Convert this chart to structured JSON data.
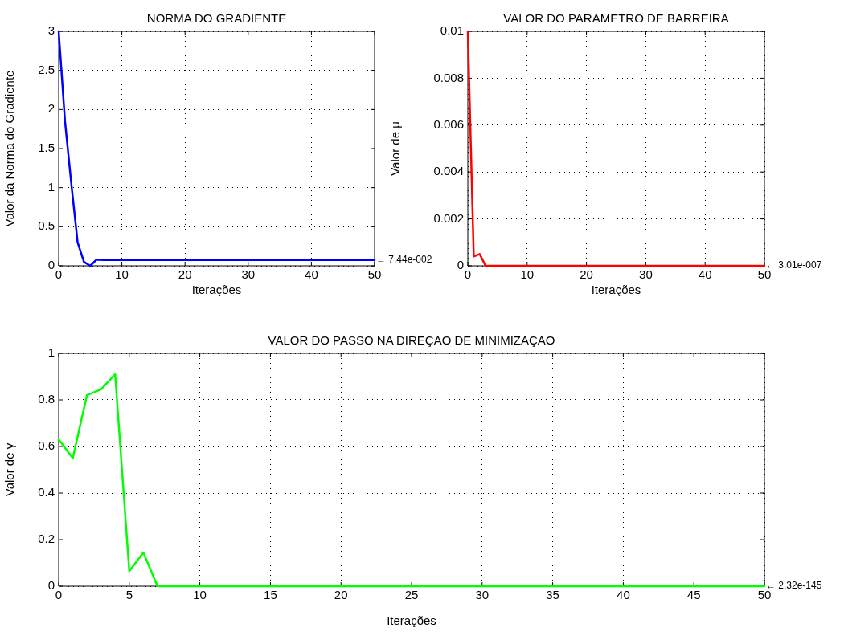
{
  "chart_data": [
    {
      "type": "line",
      "title": "NORMA DO GRADIENTE",
      "xlabel": "Iterações",
      "ylabel": "Valor da Norma do Gradiente",
      "x": [
        0,
        1,
        2,
        3,
        4,
        5,
        6,
        7,
        8,
        9,
        10,
        11,
        12,
        13,
        14,
        15,
        16,
        17,
        18,
        19,
        20,
        21,
        22,
        23,
        24,
        25,
        26,
        27,
        28,
        29,
        30,
        31,
        32,
        33,
        34,
        35,
        36,
        37,
        38,
        39,
        40,
        41,
        42,
        43,
        44,
        45,
        46,
        47,
        48,
        49,
        50
      ],
      "series": [
        {
          "color": "#0000ff",
          "values": [
            3,
            1.85,
            1.05,
            0.3,
            0.05,
            0,
            0.08,
            0.0744,
            0.0744,
            0.0744,
            0.0744,
            0.0744,
            0.0744,
            0.0744,
            0.0744,
            0.0744,
            0.0744,
            0.0744,
            0.0744,
            0.0744,
            0.0744,
            0.0744,
            0.0744,
            0.0744,
            0.0744,
            0.0744,
            0.0744,
            0.0744,
            0.0744,
            0.0744,
            0.0744,
            0.0744,
            0.0744,
            0.0744,
            0.0744,
            0.0744,
            0.0744,
            0.0744,
            0.0744,
            0.0744,
            0.0744,
            0.0744,
            0.0744,
            0.0744,
            0.0744,
            0.0744,
            0.0744,
            0.0744,
            0.0744,
            0.0744,
            0.0744
          ]
        }
      ],
      "xlim": [
        0,
        50
      ],
      "xticks": [
        0,
        10,
        20,
        30,
        40,
        50
      ],
      "ylim": [
        0,
        3
      ],
      "yticks": [
        0,
        0.5,
        1,
        1.5,
        2,
        2.5,
        3
      ],
      "grid": true,
      "annotations": [
        "← 7.44e-002"
      ]
    },
    {
      "type": "line",
      "title": "VALOR DO PARAMETRO DE BARREIRA",
      "xlabel": "Iterações",
      "ylabel": "Valor de μ",
      "x": [
        0,
        1,
        2,
        3,
        4,
        5,
        6,
        7,
        8,
        9,
        10,
        11,
        12,
        13,
        14,
        15,
        16,
        17,
        18,
        19,
        20,
        21,
        22,
        23,
        24,
        25,
        26,
        27,
        28,
        29,
        30,
        31,
        32,
        33,
        34,
        35,
        36,
        37,
        38,
        39,
        40,
        41,
        42,
        43,
        44,
        45,
        46,
        47,
        48,
        49,
        50
      ],
      "series": [
        {
          "color": "#ff0000",
          "values": [
            0.01,
            0.0004,
            0.0005,
            0,
            0,
            0,
            0,
            0,
            0,
            0,
            0,
            0,
            0,
            0,
            0,
            0,
            0,
            0,
            0,
            0,
            0,
            0,
            0,
            0,
            0,
            0,
            0,
            0,
            0,
            0,
            0,
            0,
            0,
            0,
            0,
            0,
            0,
            0,
            0,
            0,
            0,
            0,
            0,
            0,
            0,
            0,
            0,
            0,
            0,
            0,
            0
          ]
        }
      ],
      "xlim": [
        0,
        50
      ],
      "xticks": [
        0,
        10,
        20,
        30,
        40,
        50
      ],
      "ylim": [
        0,
        0.01
      ],
      "yticks": [
        0,
        0.002,
        0.004,
        0.006,
        0.008,
        0.01
      ],
      "grid": true,
      "annotations": [
        "← 3.01e-007"
      ]
    },
    {
      "type": "line",
      "title": "VALOR DO PASSO NA DIREÇAO DE MINIMIZAÇAO",
      "xlabel": "Iterações",
      "ylabel": "Valor de γ",
      "x": [
        0,
        1,
        2,
        3,
        4,
        5,
        6,
        7,
        8,
        9,
        10,
        11,
        12,
        13,
        14,
        15,
        16,
        17,
        18,
        19,
        20,
        21,
        22,
        23,
        24,
        25,
        26,
        27,
        28,
        29,
        30,
        31,
        32,
        33,
        34,
        35,
        36,
        37,
        38,
        39,
        40,
        41,
        42,
        43,
        44,
        45,
        46,
        47,
        48,
        49,
        50
      ],
      "series": [
        {
          "color": "#00ff00",
          "values": [
            0.63,
            0.55,
            0.82,
            0.845,
            0.91,
            0.065,
            0.145,
            0,
            0,
            0,
            0,
            0,
            0,
            0,
            0,
            0,
            0,
            0,
            0,
            0,
            0,
            0,
            0,
            0,
            0,
            0,
            0,
            0,
            0,
            0,
            0,
            0,
            0,
            0,
            0,
            0,
            0,
            0,
            0,
            0,
            0,
            0,
            0,
            0,
            0,
            0,
            0,
            0,
            0,
            0,
            0
          ]
        }
      ],
      "xlim": [
        0,
        50
      ],
      "xticks": [
        0,
        5,
        10,
        15,
        20,
        25,
        30,
        35,
        40,
        45,
        50
      ],
      "ylim": [
        0,
        1
      ],
      "yticks": [
        0,
        0.2,
        0.4,
        0.6,
        0.8,
        1
      ],
      "grid": true,
      "annotations": [
        "← 2.32e-145"
      ]
    }
  ]
}
